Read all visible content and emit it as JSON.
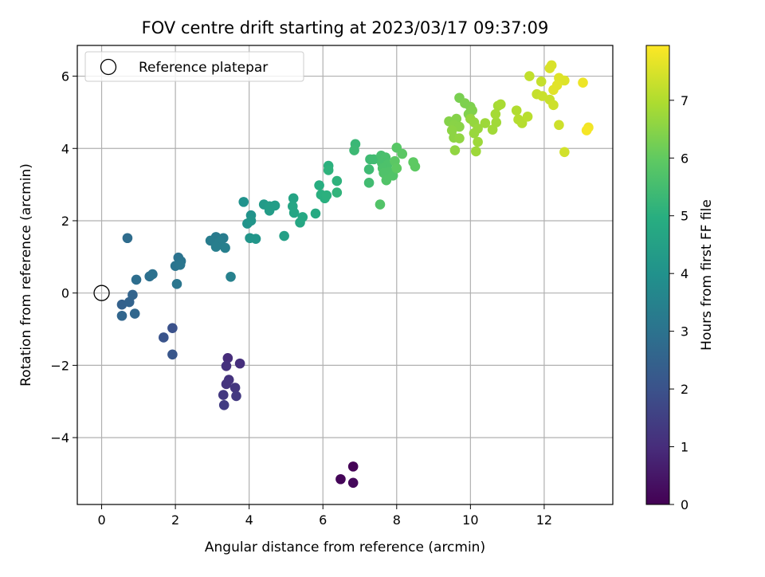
{
  "chart_data": {
    "type": "scatter",
    "title": "FOV centre drift starting at 2023/03/17 09:37:09",
    "xlabel": "Angular distance from reference (arcmin)",
    "ylabel": "Rotation from reference (arcmin)",
    "xlim": [
      -0.66,
      13.86
    ],
    "ylim": [
      -5.85,
      6.85
    ],
    "xticks": [
      0,
      2,
      4,
      6,
      8,
      10,
      12
    ],
    "yticks": [
      -4,
      -2,
      0,
      2,
      4,
      6
    ],
    "xtick_labels": [
      "0",
      "2",
      "4",
      "6",
      "8",
      "10",
      "12"
    ],
    "ytick_labels": [
      "−4",
      "−2",
      "0",
      "2",
      "4",
      "6"
    ],
    "grid": true,
    "legend": {
      "placement": "top-left",
      "entries": [
        {
          "label": "Reference platepar",
          "marker": "open-circle",
          "color": "#000000"
        }
      ]
    },
    "reference_point": {
      "x": 0,
      "y": 0
    },
    "colorbar": {
      "label": "Hours from first FF file",
      "min": 0,
      "max": 7.95,
      "ticks": [
        0,
        1,
        2,
        3,
        4,
        5,
        6,
        7
      ],
      "tick_labels": [
        "0",
        "1",
        "2",
        "3",
        "4",
        "5",
        "6",
        "7"
      ],
      "colormap": "viridis",
      "stops": [
        "#440154",
        "#472d7b",
        "#3b528b",
        "#2c728e",
        "#21918c",
        "#28ae80",
        "#5ec962",
        "#addc30",
        "#fde725"
      ]
    },
    "points": [
      [
        6.82,
        -4.8,
        0.05
      ],
      [
        6.48,
        -5.15,
        0.1
      ],
      [
        6.82,
        -5.25,
        0.15
      ],
      [
        3.42,
        -1.8,
        1.0
      ],
      [
        3.75,
        -1.95,
        1.05
      ],
      [
        3.38,
        -2.02,
        1.1
      ],
      [
        3.45,
        -2.4,
        1.15
      ],
      [
        3.38,
        -2.52,
        1.2
      ],
      [
        3.62,
        -2.62,
        1.25
      ],
      [
        3.3,
        -2.82,
        1.3
      ],
      [
        3.65,
        -2.85,
        1.35
      ],
      [
        3.32,
        -3.1,
        1.4
      ],
      [
        1.92,
        -0.97,
        2.0
      ],
      [
        1.68,
        -1.23,
        2.05
      ],
      [
        1.92,
        -1.7,
        2.1
      ],
      [
        0.55,
        -0.32,
        2.45
      ],
      [
        0.75,
        -0.25,
        2.5
      ],
      [
        0.84,
        -0.05,
        2.55
      ],
      [
        0.55,
        -0.63,
        2.6
      ],
      [
        0.9,
        -0.57,
        2.65
      ],
      [
        0.7,
        1.52,
        2.8
      ],
      [
        0.94,
        0.37,
        2.85
      ],
      [
        1.3,
        0.46,
        2.9
      ],
      [
        1.38,
        0.52,
        2.95
      ],
      [
        2.08,
        0.98,
        3.0
      ],
      [
        2.0,
        0.75,
        3.05
      ],
      [
        2.15,
        0.88,
        3.05
      ],
      [
        2.13,
        0.78,
        3.1
      ],
      [
        2.04,
        0.25,
        3.1
      ],
      [
        3.1,
        1.55,
        3.25
      ],
      [
        3.3,
        1.52,
        3.3
      ],
      [
        2.95,
        1.45,
        3.3
      ],
      [
        3.2,
        1.42,
        3.35
      ],
      [
        3.1,
        1.28,
        3.35
      ],
      [
        3.35,
        1.25,
        3.4
      ],
      [
        3.5,
        0.45,
        3.45
      ],
      [
        3.85,
        2.52,
        4.0
      ],
      [
        4.05,
        2.15,
        4.05
      ],
      [
        3.95,
        1.92,
        4.05
      ],
      [
        4.05,
        2.0,
        4.1
      ],
      [
        4.02,
        1.52,
        4.1
      ],
      [
        4.18,
        1.5,
        4.15
      ],
      [
        4.4,
        2.45,
        4.3
      ],
      [
        4.55,
        2.28,
        4.35
      ],
      [
        4.7,
        2.42,
        4.4
      ],
      [
        4.55,
        2.4,
        4.4
      ],
      [
        4.95,
        1.58,
        4.45
      ],
      [
        5.2,
        2.62,
        4.6
      ],
      [
        5.18,
        2.4,
        4.65
      ],
      [
        5.22,
        2.22,
        4.65
      ],
      [
        5.38,
        1.95,
        4.7
      ],
      [
        5.45,
        2.1,
        4.75
      ],
      [
        5.8,
        2.2,
        4.8
      ],
      [
        5.9,
        2.98,
        4.95
      ],
      [
        5.95,
        2.72,
        5.0
      ],
      [
        6.05,
        2.62,
        5.0
      ],
      [
        6.1,
        2.7,
        5.05
      ],
      [
        6.15,
        3.52,
        5.05
      ],
      [
        6.15,
        3.4,
        5.1
      ],
      [
        6.38,
        3.1,
        5.1
      ],
      [
        6.38,
        2.78,
        5.15
      ],
      [
        6.88,
        4.12,
        5.3
      ],
      [
        6.85,
        3.95,
        5.35
      ],
      [
        7.28,
        3.7,
        5.4
      ],
      [
        7.25,
        3.42,
        5.4
      ],
      [
        7.38,
        3.7,
        5.45
      ],
      [
        7.25,
        3.05,
        5.45
      ],
      [
        7.58,
        3.8,
        5.55
      ],
      [
        7.7,
        3.75,
        5.6
      ],
      [
        7.6,
        3.6,
        5.6
      ],
      [
        7.75,
        3.55,
        5.65
      ],
      [
        7.62,
        3.45,
        5.65
      ],
      [
        7.8,
        3.35,
        5.7
      ],
      [
        7.65,
        3.32,
        5.7
      ],
      [
        7.9,
        3.25,
        5.75
      ],
      [
        7.72,
        3.12,
        5.75
      ],
      [
        7.55,
        2.45,
        5.75
      ],
      [
        8.0,
        4.02,
        5.85
      ],
      [
        8.15,
        3.85,
        5.9
      ],
      [
        7.95,
        3.65,
        5.9
      ],
      [
        8.45,
        3.62,
        5.95
      ],
      [
        8.5,
        3.5,
        5.95
      ],
      [
        8.0,
        3.45,
        5.95
      ],
      [
        9.7,
        5.4,
        6.3
      ],
      [
        9.85,
        5.25,
        6.35
      ],
      [
        10.0,
        5.15,
        6.35
      ],
      [
        10.05,
        5.05,
        6.4
      ],
      [
        9.95,
        4.95,
        6.4
      ],
      [
        9.62,
        4.82,
        6.45
      ],
      [
        9.42,
        4.75,
        6.45
      ],
      [
        9.55,
        4.65,
        6.5
      ],
      [
        9.7,
        4.6,
        6.5
      ],
      [
        9.5,
        4.5,
        6.55
      ],
      [
        9.55,
        4.3,
        6.55
      ],
      [
        9.7,
        4.28,
        6.6
      ],
      [
        9.58,
        3.95,
        6.6
      ],
      [
        10.0,
        4.82,
        6.65
      ],
      [
        10.1,
        4.72,
        6.65
      ],
      [
        10.2,
        4.55,
        6.7
      ],
      [
        10.1,
        4.42,
        6.7
      ],
      [
        10.2,
        4.18,
        6.75
      ],
      [
        10.15,
        3.92,
        6.75
      ],
      [
        10.4,
        4.7,
        6.75
      ],
      [
        10.6,
        4.52,
        6.8
      ],
      [
        10.7,
        4.72,
        6.8
      ],
      [
        10.68,
        4.95,
        6.85
      ],
      [
        10.75,
        5.18,
        6.85
      ],
      [
        10.82,
        5.22,
        6.9
      ],
      [
        11.25,
        5.05,
        7.0
      ],
      [
        11.3,
        4.8,
        7.05
      ],
      [
        11.4,
        4.7,
        7.05
      ],
      [
        11.55,
        4.88,
        7.1
      ],
      [
        11.6,
        6.0,
        7.2
      ],
      [
        11.92,
        5.85,
        7.25
      ],
      [
        11.8,
        5.5,
        7.25
      ],
      [
        11.95,
        5.45,
        7.3
      ],
      [
        12.15,
        5.35,
        7.3
      ],
      [
        12.25,
        5.2,
        7.35
      ],
      [
        12.4,
        4.65,
        7.35
      ],
      [
        12.55,
        3.9,
        7.4
      ],
      [
        12.2,
        6.3,
        7.5
      ],
      [
        12.15,
        6.22,
        7.5
      ],
      [
        12.4,
        5.95,
        7.55
      ],
      [
        12.55,
        5.88,
        7.55
      ],
      [
        12.35,
        5.75,
        7.6
      ],
      [
        12.25,
        5.62,
        7.6
      ],
      [
        13.05,
        5.82,
        7.75
      ],
      [
        13.2,
        4.58,
        7.8
      ],
      [
        13.15,
        4.5,
        7.85
      ]
    ]
  }
}
